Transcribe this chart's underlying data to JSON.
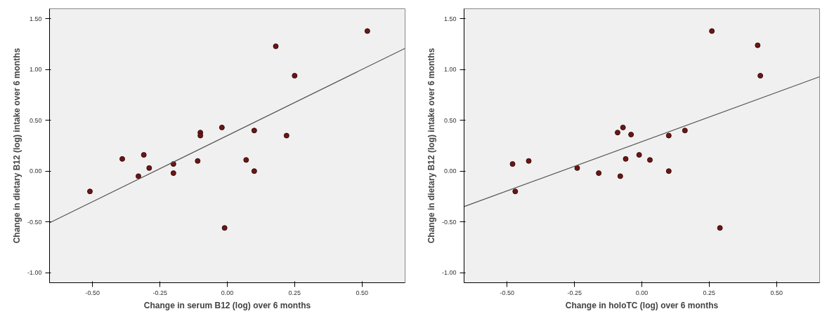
{
  "chart_data": [
    {
      "type": "scatter",
      "xlabel": "Change in serum B12 (log) over 6 months",
      "ylabel": "Change in dietary B12 (log) intake over 6 months",
      "grid": false,
      "xlim": [
        -0.66,
        0.66
      ],
      "ylim": [
        -1.1,
        1.6
      ],
      "xticks": [
        {
          "value": -0.5,
          "label": "-0.50"
        },
        {
          "value": -0.25,
          "label": "-0.25"
        },
        {
          "value": 0,
          "label": "0.00"
        },
        {
          "value": 0.25,
          "label": "0.25"
        },
        {
          "value": 0.5,
          "label": "0.50"
        }
      ],
      "yticks": [
        {
          "value": -1,
          "label": "-1.00"
        },
        {
          "value": -0.5,
          "label": "-0.50"
        },
        {
          "value": 0,
          "label": "0.00"
        },
        {
          "value": 0.5,
          "label": "0.50"
        },
        {
          "value": 1,
          "label": "1.00"
        },
        {
          "value": 1.5,
          "label": "1.50"
        }
      ],
      "series": [
        {
          "marker": "circle",
          "color": "#6b1616",
          "x": [
            -0.51,
            -0.39,
            -0.31,
            -0.33,
            -0.29,
            -0.2,
            -0.2,
            -0.11,
            -0.1,
            -0.1,
            -0.02,
            -0.01,
            0.07,
            0.1,
            0.1,
            0.18,
            0.22,
            0.25,
            0.52
          ],
          "values": [
            -0.2,
            0.12,
            0.16,
            -0.05,
            0.03,
            -0.02,
            0.07,
            0.1,
            0.38,
            0.35,
            0.43,
            -0.56,
            0.11,
            0.4,
            0.0,
            1.23,
            0.35,
            0.94,
            1.38
          ]
        },
        {
          "type": "line",
          "color": "#555555",
          "x": [
            -0.66,
            0.66
          ],
          "values": [
            -0.51,
            1.21
          ]
        }
      ]
    },
    {
      "type": "scatter",
      "xlabel": "Change in holoTC (log) over 6 months",
      "ylabel": "Change in dietary B12 (log) intake over 6 months",
      "grid": false,
      "xlim": [
        -0.66,
        0.66
      ],
      "ylim": [
        -1.1,
        1.6
      ],
      "xticks": [
        {
          "value": -0.5,
          "label": "-0.50"
        },
        {
          "value": -0.25,
          "label": "-0.25"
        },
        {
          "value": 0,
          "label": "0.00"
        },
        {
          "value": 0.25,
          "label": "0.25"
        },
        {
          "value": 0.5,
          "label": "0.50"
        }
      ],
      "yticks": [
        {
          "value": -1,
          "label": "-1.00"
        },
        {
          "value": -0.5,
          "label": "-0.50"
        },
        {
          "value": 0,
          "label": "0.00"
        },
        {
          "value": 0.5,
          "label": "0.50"
        },
        {
          "value": 1,
          "label": "1.00"
        },
        {
          "value": 1.5,
          "label": "1.50"
        }
      ],
      "series": [
        {
          "marker": "circle",
          "color": "#6b1616",
          "x": [
            -0.48,
            -0.47,
            -0.42,
            -0.24,
            -0.16,
            -0.09,
            -0.07,
            -0.08,
            -0.06,
            -0.04,
            -0.01,
            0.03,
            0.1,
            0.1,
            0.16,
            0.26,
            0.29,
            0.43,
            0.44
          ],
          "values": [
            0.07,
            -0.2,
            0.1,
            0.03,
            -0.02,
            0.38,
            0.43,
            -0.05,
            0.12,
            0.36,
            0.16,
            0.11,
            0.35,
            0.0,
            0.4,
            1.38,
            -0.56,
            1.24,
            0.94
          ]
        },
        {
          "type": "line",
          "color": "#555555",
          "x": [
            -0.66,
            0.66
          ],
          "values": [
            -0.35,
            0.93
          ]
        }
      ]
    }
  ]
}
